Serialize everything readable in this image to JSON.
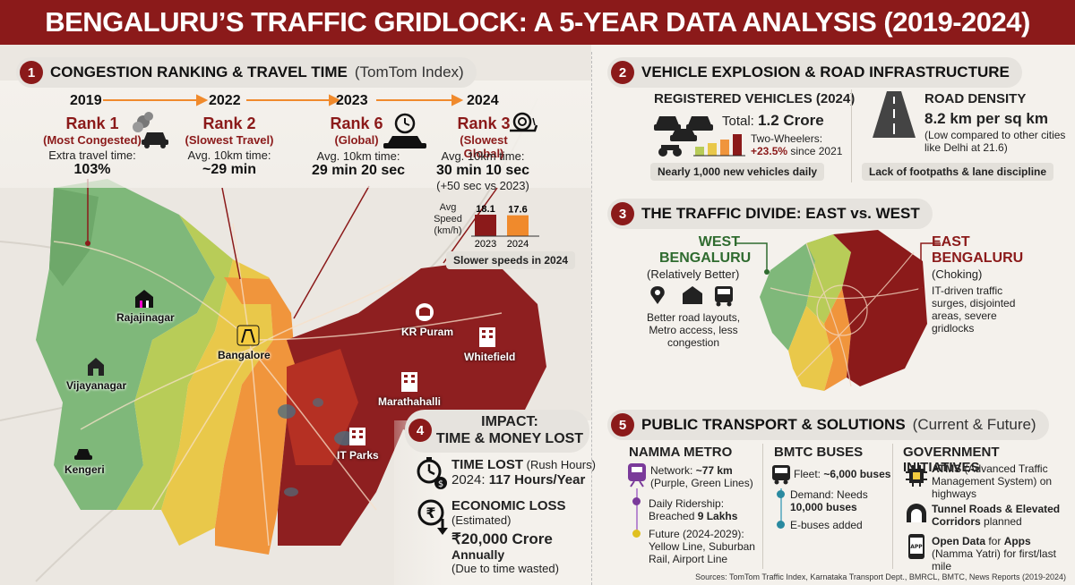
{
  "header": {
    "title": "BENGALURU’S TRAFFIC GRIDLOCK: A 5-YEAR DATA ANALYSIS (2019-2024)"
  },
  "section1": {
    "number": "1",
    "title": "CONGESTION RANKING & TRAVEL TIME",
    "note": "(TomTom Index)",
    "timeline": [
      {
        "year": "2019",
        "rank": "Rank 1",
        "sub": "(Most Congested)",
        "label": "Extra travel time:",
        "value": "103%",
        "icon": "car-smoke-icon"
      },
      {
        "year": "2022",
        "rank": "Rank 2",
        "sub": "(Slowest Travel)",
        "label": "Avg. 10km time:",
        "value": "~29 min",
        "icon": "none"
      },
      {
        "year": "2023",
        "rank": "Rank 6",
        "sub": "(Global)",
        "label": "Avg. 10km time:",
        "value": "29 min 20 sec",
        "icon": "clock-car-icon"
      },
      {
        "year": "2024",
        "rank": "Rank 3",
        "sub": "(Slowest Global)",
        "label": "Avg. 10km time:",
        "value": "30 min 10 sec",
        "extra": "(+50 sec vs 2023)",
        "icon": "snail-icon"
      }
    ],
    "speed_chart": {
      "label_line1": "Avg",
      "label_line2": "Speed",
      "label_line3": "(km/h)",
      "bars": [
        {
          "year": "2023",
          "value": 18.1,
          "label": "18.1",
          "color": "#8b1a1a"
        },
        {
          "year": "2024",
          "value": 17.6,
          "label": "17.6",
          "color": "#f08a2c"
        }
      ],
      "caption": "Slower speeds in 2024"
    },
    "map_locations": [
      "Rajajinagar",
      "Bangalore",
      "Vijayanagar",
      "Kengeri",
      "KR Puram",
      "Whitefield",
      "Marathahalli",
      "IT Parks"
    ]
  },
  "section2": {
    "number": "2",
    "title": "VEHICLE EXPLOSION & ROAD INFRASTRUCTURE",
    "registered": {
      "heading": "REGISTERED VEHICLES (2024)",
      "total_label": "Total: ",
      "total_value": "1.2 Crore",
      "tw_label": "Two-Wheelers:",
      "tw_value": "+23.5%",
      "tw_suffix": " since 2021",
      "pill": "Nearly 1,000 new vehicles daily"
    },
    "density": {
      "heading": "ROAD DENSITY",
      "value": "8.2 km per sq km",
      "note": "(Low compared to other cities like Delhi at 21.6)",
      "pill": "Lack of footpaths & lane discipline"
    }
  },
  "section3": {
    "number": "3",
    "title": "THE TRAFFIC DIVIDE: EAST vs. WEST",
    "west": {
      "name1": "WEST",
      "name2": "BENGALURU",
      "status": "(Relatively Better)",
      "desc": "Better road layouts, Metro access, less congestion"
    },
    "east": {
      "name1": "EAST",
      "name2": "BENGALURU",
      "status": "(Choking)",
      "desc": "IT-driven traffic surges, disjointed areas, severe gridlocks"
    }
  },
  "section4": {
    "number": "4",
    "title1": "IMPACT:",
    "title2": "TIME & MONEY LOST",
    "time": {
      "heading": "TIME LOST",
      "heading_note": " (Rush Hours)",
      "line_label": "2024: ",
      "line_value": "117 Hours/Year"
    },
    "money": {
      "heading": "ECONOMIC LOSS",
      "note": "(Estimated)",
      "value": "₹20,000 Crore",
      "period": "Annually",
      "reason": "(Due to time wasted)"
    }
  },
  "section5": {
    "number": "5",
    "title": "PUBLIC TRANSPORT & SOLUTIONS",
    "note": "(Current & Future)",
    "metro": {
      "heading": "NAMMA METRO",
      "network_label": "Network: ",
      "network_value": "~77 km",
      "network_note": "(Purple, Green Lines)",
      "ridership_label": "Daily Ridership:",
      "ridership_pre": "Breached ",
      "ridership_value": "9 Lakhs",
      "future_label": "Future (2024-2029):",
      "future_lines": "Yellow Line, Suburban Rail, Airport Line"
    },
    "bmtc": {
      "heading": "BMTC BUSES",
      "fleet_label": "Fleet: ",
      "fleet_value": "~6,000 buses",
      "demand_label": "Demand: Needs",
      "demand_value": "10,000 buses",
      "ebus": "E-buses added"
    },
    "gov": {
      "heading": "GOVERNMENT INITIATIVES",
      "atms_b": "ATMS",
      "atms_rest": " (Advanced Traffic Management System) on highways",
      "tunnel": "Tunnel Roads & Elevated Corridors",
      "tunnel_rest": " planned",
      "open_b": "Open Data",
      "open_mid": " for ",
      "open_b2": "Apps",
      "open_rest": " (Namma Yatri) for first/last mile"
    }
  },
  "sources": "Sources: TomTom Traffic Index, Karnataka Transport Dept., BMRCL, BMTC, News Reports (2019-2024)"
}
